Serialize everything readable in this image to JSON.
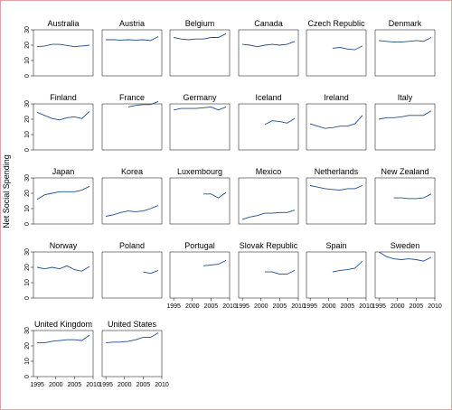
{
  "chart_data": {
    "type": "line",
    "layout": "small-multiples",
    "ylabel": "Net Social Spending",
    "xlabel": "",
    "xlim": [
      1994,
      2010
    ],
    "ylim": [
      0,
      30
    ],
    "x_ticks": [
      1995,
      2000,
      2005,
      2010
    ],
    "y_ticks": [
      0,
      10,
      20,
      30
    ],
    "grid": false,
    "line_color": "#1f4e8c",
    "panels": [
      {
        "name": "Australia",
        "x": [
          1995,
          1997,
          1999,
          2001,
          2003,
          2005,
          2007,
          2009
        ],
        "y": [
          19,
          19.5,
          20.5,
          20.5,
          19.8,
          19,
          19.5,
          20
        ]
      },
      {
        "name": "Austria",
        "x": [
          1995,
          1997,
          1999,
          2001,
          2003,
          2005,
          2007,
          2009
        ],
        "y": [
          23.5,
          23.5,
          23.3,
          23.5,
          23.3,
          23.5,
          23,
          25.5
        ]
      },
      {
        "name": "Belgium",
        "x": [
          1995,
          1997,
          1999,
          2001,
          2003,
          2005,
          2007,
          2009
        ],
        "y": [
          25,
          24,
          23.5,
          24,
          24,
          25,
          25,
          27.5
        ]
      },
      {
        "name": "Canada",
        "x": [
          1995,
          1997,
          1999,
          2001,
          2003,
          2005,
          2007,
          2009
        ],
        "y": [
          20.5,
          20,
          19,
          20,
          20.5,
          20,
          20.5,
          22.5
        ]
      },
      {
        "name": "Czech Republic",
        "x": [
          2001,
          2003,
          2005,
          2007,
          2009
        ],
        "y": [
          18,
          18.5,
          17.5,
          17,
          19.5
        ]
      },
      {
        "name": "Denmark",
        "x": [
          1995,
          1997,
          1999,
          2001,
          2003,
          2005,
          2007,
          2009
        ],
        "y": [
          23,
          22.5,
          22,
          22,
          22.5,
          23,
          22.5,
          25
        ]
      },
      {
        "name": "Finland",
        "x": [
          1995,
          1997,
          1999,
          2001,
          2003,
          2005,
          2007,
          2009
        ],
        "y": [
          24.5,
          22.5,
          20.5,
          19.5,
          21,
          21.5,
          20.5,
          25
        ]
      },
      {
        "name": "France",
        "x": [
          2001,
          2003,
          2005,
          2007,
          2009
        ],
        "y": [
          28,
          29,
          29.5,
          29.5,
          31.5
        ]
      },
      {
        "name": "Germany",
        "x": [
          1995,
          1997,
          1999,
          2001,
          2003,
          2005,
          2007,
          2009
        ],
        "y": [
          26,
          27,
          27,
          27,
          27.5,
          28,
          26,
          28
        ]
      },
      {
        "name": "Iceland",
        "x": [
          2001,
          2003,
          2005,
          2007,
          2009
        ],
        "y": [
          16.5,
          19,
          18.5,
          17.5,
          20.5
        ]
      },
      {
        "name": "Ireland",
        "x": [
          1995,
          1997,
          1999,
          2001,
          2003,
          2005,
          2007,
          2009
        ],
        "y": [
          17,
          15.5,
          14,
          14.5,
          15.5,
          15.5,
          17,
          22.5
        ]
      },
      {
        "name": "Italy",
        "x": [
          1995,
          1997,
          1999,
          2001,
          2003,
          2005,
          2007,
          2009
        ],
        "y": [
          20,
          21,
          21,
          21.5,
          22.5,
          22.5,
          22.5,
          25.5
        ]
      },
      {
        "name": "Japan",
        "x": [
          1995,
          1997,
          1999,
          2001,
          2003,
          2005,
          2007,
          2009
        ],
        "y": [
          16,
          19,
          20,
          21,
          21,
          21,
          22,
          24.5
        ]
      },
      {
        "name": "Korea",
        "x": [
          1995,
          1997,
          1999,
          2001,
          2003,
          2005,
          2007,
          2009
        ],
        "y": [
          5,
          6,
          7.5,
          8.5,
          8,
          8.5,
          10,
          12
        ]
      },
      {
        "name": "Luxembourg",
        "x": [
          2003,
          2005,
          2007,
          2009
        ],
        "y": [
          19.5,
          19.5,
          17,
          20.5
        ]
      },
      {
        "name": "Mexico",
        "x": [
          1995,
          1997,
          1999,
          2001,
          2003,
          2005,
          2007,
          2009
        ],
        "y": [
          3,
          4.5,
          5.5,
          7,
          7,
          7.5,
          7.5,
          9
        ]
      },
      {
        "name": "Netherlands",
        "x": [
          1995,
          1997,
          1999,
          2001,
          2003,
          2005,
          2007,
          2009
        ],
        "y": [
          25,
          24,
          23,
          22.5,
          22,
          23,
          23,
          25
        ]
      },
      {
        "name": "New Zealand",
        "x": [
          1999,
          2001,
          2003,
          2005,
          2007,
          2009
        ],
        "y": [
          17,
          17,
          16.5,
          16.5,
          17,
          19.5
        ]
      },
      {
        "name": "Norway",
        "x": [
          1995,
          1997,
          1999,
          2001,
          2003,
          2005,
          2007,
          2009
        ],
        "y": [
          20,
          19,
          20,
          19,
          21,
          18.5,
          17.5,
          20.5
        ]
      },
      {
        "name": "Poland",
        "x": [
          2005,
          2007,
          2009
        ],
        "y": [
          17,
          16,
          18
        ]
      },
      {
        "name": "Portugal",
        "x": [
          2003,
          2005,
          2007,
          2009
        ],
        "y": [
          21,
          21.5,
          22,
          24.5
        ]
      },
      {
        "name": "Slovak Republic",
        "x": [
          2001,
          2003,
          2005,
          2007,
          2009
        ],
        "y": [
          17,
          17,
          15.5,
          15.5,
          18
        ]
      },
      {
        "name": "Spain",
        "x": [
          2001,
          2003,
          2005,
          2007,
          2009
        ],
        "y": [
          17,
          18,
          18.5,
          19.5,
          24
        ]
      },
      {
        "name": "Sweden",
        "x": [
          1995,
          1997,
          1999,
          2001,
          2003,
          2005,
          2007,
          2009
        ],
        "y": [
          30,
          27,
          25.5,
          25,
          25.5,
          25,
          24,
          26.5
        ]
      },
      {
        "name": "United Kingdom",
        "x": [
          1995,
          1997,
          1999,
          2001,
          2003,
          2005,
          2007,
          2009
        ],
        "y": [
          22,
          22,
          23,
          23.5,
          24,
          24,
          23.5,
          27
        ]
      },
      {
        "name": "United States",
        "x": [
          1995,
          1997,
          1999,
          2001,
          2003,
          2005,
          2007,
          2009
        ],
        "y": [
          22,
          22.5,
          22.5,
          23,
          24,
          25.5,
          25.5,
          28.5
        ]
      }
    ]
  }
}
